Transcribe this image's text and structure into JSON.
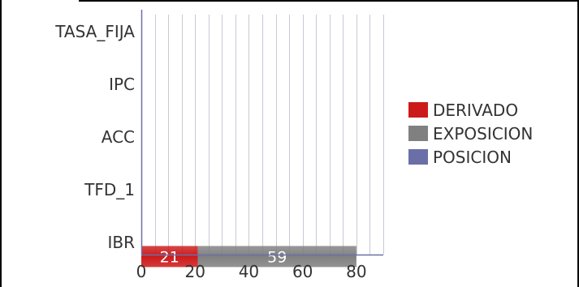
{
  "chart_data": {
    "type": "bar",
    "orientation": "horizontal",
    "stacked": true,
    "categories": [
      "TASA_FIJA",
      "IPC",
      "ACC",
      "TFD_1",
      "IBR"
    ],
    "series": [
      {
        "name": "DERIVADO",
        "color": "#cc1a1a",
        "values": [
          null,
          null,
          null,
          null,
          21
        ]
      },
      {
        "name": "EXPOSICION",
        "color": "#808080",
        "values": [
          null,
          null,
          null,
          null,
          59
        ]
      },
      {
        "name": "POSICION",
        "color": "#6a6fa8",
        "values": [
          null,
          null,
          null,
          null,
          null
        ]
      }
    ],
    "data_labels": [
      "21",
      "59"
    ],
    "x_ticks": [
      0,
      20,
      40,
      60,
      80
    ],
    "xlim": [
      0,
      90
    ],
    "grid": "vertical",
    "legend_position": "right"
  }
}
